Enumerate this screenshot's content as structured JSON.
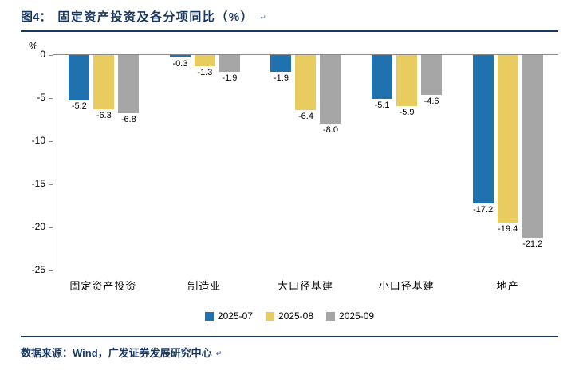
{
  "title": {
    "figure_label": "图4：",
    "text": "固定资产投资及各分项同比（%）",
    "return_mark": "↵"
  },
  "y_axis": {
    "unit": "%",
    "ticks": [
      "0",
      "-5",
      "-10",
      "-15",
      "-20",
      "-25"
    ]
  },
  "chart_data": {
    "type": "bar",
    "title": "固定资产投资及各分项同比（%）",
    "categories": [
      "固定资产投资",
      "制造业",
      "大口径基建",
      "小口径基建",
      "地产"
    ],
    "series": [
      {
        "name": "2025-07",
        "color": "#1F72AD",
        "values": [
          -5.2,
          -0.3,
          -1.9,
          -5.1,
          -17.2
        ]
      },
      {
        "name": "2025-08",
        "color": "#E9CC60",
        "values": [
          -6.3,
          -1.3,
          -6.4,
          -5.9,
          -19.4
        ]
      },
      {
        "name": "2025-09",
        "color": "#A6A6A6",
        "values": [
          -6.8,
          -1.9,
          -8.0,
          -4.6,
          -21.2
        ]
      }
    ],
    "xlabel": "",
    "ylabel": "%",
    "ylim": [
      -25,
      0
    ],
    "grid": false,
    "legend_position": "bottom",
    "data_labels": true,
    "data_label_decimals": 1
  },
  "footer": {
    "source_text": "数据来源：Wind，广发证券发展研究中心",
    "return_mark": "↵"
  },
  "colors": {
    "accent_navy": "#17375E",
    "bar_blue": "#1F72AD",
    "bar_yellow": "#E9CC60",
    "bar_gray": "#A6A6A6"
  }
}
